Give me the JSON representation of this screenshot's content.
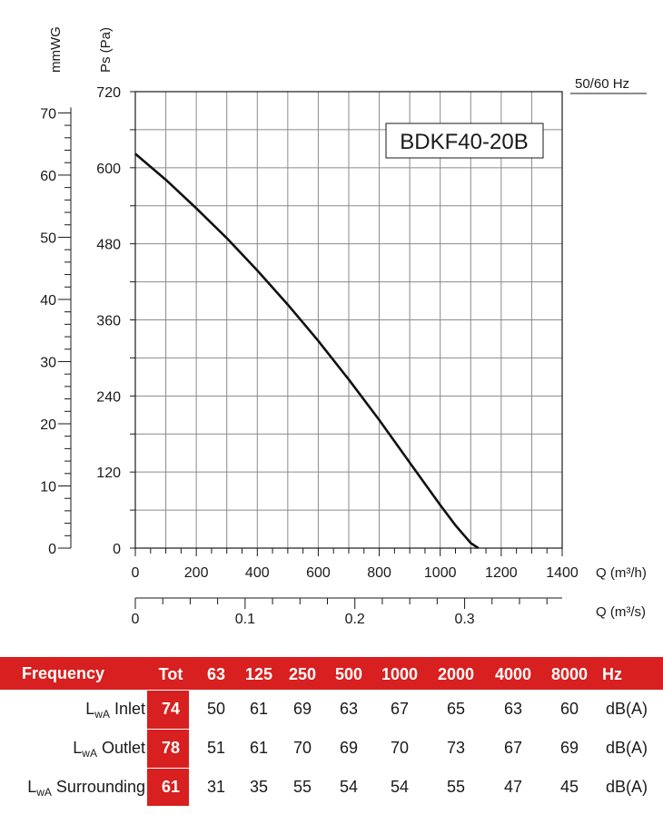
{
  "chart_data": {
    "type": "line",
    "model": "BDKF40-20B",
    "frequency_note": "50/60 Hz",
    "y_left_secondary": {
      "label": "mmWG",
      "ticks": [
        0,
        10,
        20,
        30,
        40,
        50,
        60,
        70
      ]
    },
    "y_primary": {
      "label": "Ps (Pa)",
      "ticks": [
        0,
        120,
        240,
        360,
        480,
        600,
        720
      ],
      "ylim": [
        0,
        720
      ]
    },
    "x_primary": {
      "label": "Q (m³/h)",
      "ticks": [
        0,
        200,
        400,
        600,
        800,
        1000,
        1200,
        1400
      ],
      "xlim": [
        0,
        1400
      ]
    },
    "x_secondary": {
      "label": "Q (m³/s)",
      "ticks": [
        "0",
        "0.1",
        "0.2",
        "0.3"
      ]
    },
    "grid": true,
    "series": [
      {
        "x": [
          0,
          100,
          200,
          300,
          400,
          500,
          600,
          700,
          800,
          900,
          1000,
          1050,
          1100,
          1125
        ],
        "y": [
          622,
          581,
          536,
          489,
          438,
          384,
          327,
          266,
          202,
          135,
          68,
          36,
          8,
          0
        ]
      }
    ]
  },
  "table": {
    "title": "Frequency",
    "columns": [
      "Tot",
      "63",
      "125",
      "250",
      "500",
      "1000",
      "2000",
      "4000",
      "8000",
      "Hz"
    ],
    "rows": [
      {
        "prefix": "L",
        "sub": "wA",
        "name": "Inlet",
        "tot": "74",
        "values": [
          "50",
          "61",
          "69",
          "63",
          "67",
          "65",
          "63",
          "60"
        ],
        "unit": "dB(A)"
      },
      {
        "prefix": "L",
        "sub": "wA",
        "name": "Outlet",
        "tot": "78",
        "values": [
          "51",
          "61",
          "70",
          "69",
          "70",
          "73",
          "67",
          "69"
        ],
        "unit": "dB(A)"
      },
      {
        "prefix": "L",
        "sub": "wA",
        "name": "Surrounding",
        "tot": "61",
        "values": [
          "31",
          "35",
          "55",
          "54",
          "54",
          "55",
          "47",
          "45"
        ],
        "unit": "dB(A)"
      }
    ]
  },
  "colors": {
    "accent": "#d7201f",
    "row_bg": "#e6e6e6"
  }
}
